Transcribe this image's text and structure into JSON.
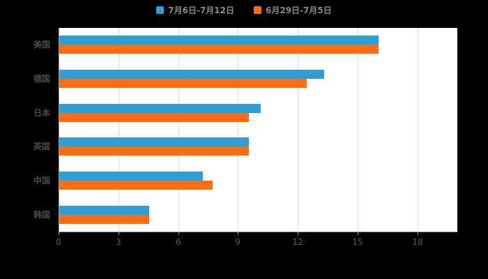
{
  "page": {
    "background": "#000000"
  },
  "legend": {
    "items": [
      {
        "label": "7月6日-7月12日",
        "color": "#2f9dd6"
      },
      {
        "label": "6月29日-7月5日",
        "color": "#ff6e12"
      }
    ]
  },
  "chart_data": {
    "type": "bar",
    "orientation": "horizontal",
    "title": "",
    "xlabel": "",
    "ylabel": "",
    "categories": [
      "美国",
      "德国",
      "日本",
      "英国",
      "中国",
      "韩国"
    ],
    "series": [
      {
        "name": "7月6日-7月12日",
        "color": "#2f9dd6",
        "values": [
          16.0,
          13.3,
          10.1,
          9.5,
          7.2,
          4.5
        ]
      },
      {
        "name": "6月29日-7月5日",
        "color": "#ff6e12",
        "values": [
          16.0,
          12.4,
          9.5,
          9.5,
          7.7,
          4.5
        ]
      }
    ],
    "x_ticks": [
      0,
      3,
      6,
      9,
      12,
      15,
      18
    ],
    "xlim": [
      0,
      20
    ],
    "grid": true,
    "legend_position": "top",
    "plot_background": "#ffffff",
    "gridline_color": "#d9d9d9",
    "axis_color": "#9b9b9b",
    "tick_label_color": "#5a5a5a"
  }
}
